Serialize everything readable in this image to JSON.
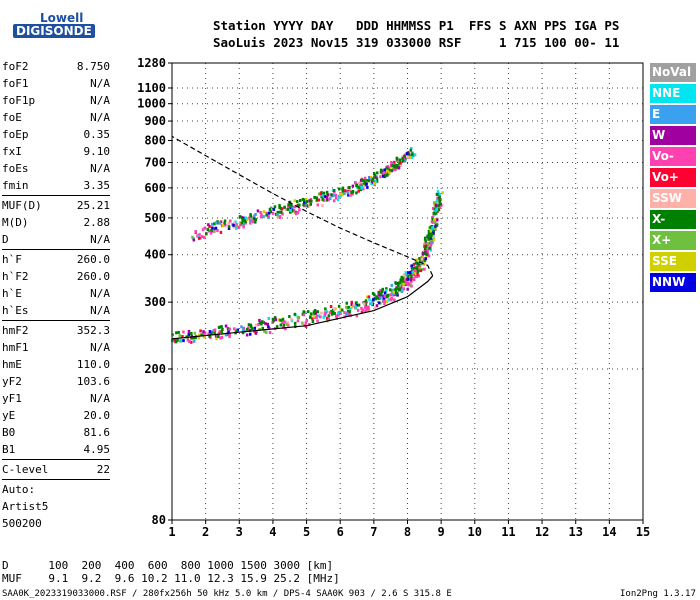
{
  "logo": {
    "line1": "Lowell",
    "line2": "DIGISONDE"
  },
  "header": {
    "line1": "Station YYYY DAY   DDD HHMMSS P1  FFS S AXN PPS IGA PS",
    "line2": "SaoLuis 2023 Nov15 319 033000 RSF     1 715 100 00- 11"
  },
  "params": [
    {
      "label": "foF2",
      "value": "8.750"
    },
    {
      "label": "foF1",
      "value": "N/A"
    },
    {
      "label": "foF1p",
      "value": "N/A"
    },
    {
      "label": "foE",
      "value": "N/A"
    },
    {
      "label": "foEp",
      "value": "0.35"
    },
    {
      "label": "fxI",
      "value": "9.10"
    },
    {
      "label": "foEs",
      "value": "N/A"
    },
    {
      "label": "fmin",
      "value": "3.35"
    },
    {
      "sep": true
    },
    {
      "label": "MUF(D)",
      "value": "25.21"
    },
    {
      "label": "M(D)",
      "value": "2.88"
    },
    {
      "label": "D",
      "value": "N/A"
    },
    {
      "sep": true
    },
    {
      "label": "h`F",
      "value": "260.0"
    },
    {
      "label": "h`F2",
      "value": "260.0"
    },
    {
      "label": "h`E",
      "value": "N/A"
    },
    {
      "label": "h`Es",
      "value": "N/A"
    },
    {
      "sep": true
    },
    {
      "label": "hmF2",
      "value": "352.3"
    },
    {
      "label": "hmF1",
      "value": "N/A"
    },
    {
      "label": "hmE",
      "value": "110.0"
    },
    {
      "label": "yF2",
      "value": "103.6"
    },
    {
      "label": "yF1",
      "value": "N/A"
    },
    {
      "label": "yE",
      "value": "20.0"
    },
    {
      "label": "B0",
      "value": "81.6"
    },
    {
      "label": "B1",
      "value": "4.95"
    },
    {
      "sep": true
    },
    {
      "label": "C-level",
      "value": "22"
    },
    {
      "sep": true
    },
    {
      "text": "Auto:"
    },
    {
      "text": "Artist5"
    },
    {
      "text": "500200"
    }
  ],
  "legend": [
    {
      "label": "NoVal",
      "color": "#a0a0a0"
    },
    {
      "label": "NNE",
      "color": "#00e6f0"
    },
    {
      "label": "E",
      "color": "#3aa0f0"
    },
    {
      "label": "W",
      "color": "#a000a0"
    },
    {
      "label": "Vo-",
      "color": "#ff40b0"
    },
    {
      "label": "Vo+",
      "color": "#ff0030"
    },
    {
      "label": "SSW",
      "color": "#ffb0a8"
    },
    {
      "label": "X-",
      "color": "#008000"
    },
    {
      "label": "X+",
      "color": "#70c040"
    },
    {
      "label": "SSE",
      "color": "#d0d000"
    },
    {
      "label": "NNW",
      "color": "#0000e0"
    }
  ],
  "chart_data": {
    "type": "scatter",
    "xlabel": "",
    "ylabel": "",
    "xlim": [
      1,
      15
    ],
    "ylim": [
      80,
      1280
    ],
    "y_scale": "log",
    "x_ticks": [
      1,
      2,
      3,
      4,
      5,
      6,
      7,
      8,
      9,
      10,
      11,
      12,
      13,
      14,
      15
    ],
    "y_ticks": [
      80,
      200,
      300,
      400,
      500,
      600,
      700,
      800,
      900,
      1000,
      1100,
      1280
    ],
    "grid": true,
    "series": [
      {
        "name": "Vo-",
        "kind": "trace",
        "points": [
          [
            1.0,
            240
          ],
          [
            3.0,
            252
          ],
          [
            5.0,
            270
          ],
          [
            6.5,
            288
          ],
          [
            7.5,
            315
          ],
          [
            8.0,
            340
          ],
          [
            8.4,
            380
          ],
          [
            8.7,
            450
          ],
          [
            8.9,
            580
          ]
        ]
      },
      {
        "name": "X-",
        "kind": "trace",
        "points": [
          [
            1.0,
            245
          ],
          [
            3.0,
            258
          ],
          [
            5.0,
            278
          ],
          [
            6.5,
            298
          ],
          [
            7.5,
            325
          ],
          [
            8.0,
            355
          ],
          [
            8.4,
            395
          ],
          [
            8.7,
            470
          ],
          [
            8.95,
            590
          ]
        ]
      },
      {
        "name": "Vo-",
        "kind": "trace",
        "points": [
          [
            1.5,
            450
          ],
          [
            3.0,
            490
          ],
          [
            4.5,
            530
          ],
          [
            6.0,
            580
          ],
          [
            7.0,
            640
          ],
          [
            8.0,
            730
          ]
        ]
      },
      {
        "name": "X-",
        "kind": "trace",
        "points": [
          [
            2.0,
            470
          ],
          [
            3.5,
            510
          ],
          [
            5.0,
            555
          ],
          [
            6.5,
            610
          ],
          [
            7.5,
            680
          ],
          [
            8.2,
            760
          ]
        ]
      }
    ],
    "model_profile": [
      [
        1.0,
        240
      ],
      [
        3.0,
        250
      ],
      [
        5.0,
        260
      ],
      [
        7.0,
        285
      ],
      [
        8.0,
        310
      ],
      [
        8.6,
        340
      ],
      [
        8.75,
        352
      ],
      [
        8.6,
        375
      ],
      [
        8.0,
        395
      ],
      [
        7.0,
        430
      ],
      [
        6.0,
        470
      ],
      [
        5.0,
        520
      ],
      [
        4.0,
        580
      ],
      [
        3.0,
        650
      ],
      [
        2.0,
        730
      ],
      [
        1.0,
        820
      ]
    ],
    "bottom_table": {
      "D_row": "D      100  200  400  600  800 1000 1500 3000 [km]",
      "MUF_row": "MUF    9.1  9.2  9.6 10.2 11.0 12.3 15.9 25.2 [MHz]"
    }
  },
  "footer": {
    "left": "SAA0K_2023319033000.RSF / 280fx256h 50 kHz 5.0 km / DPS-4 SAA0K 903 / 2.6 S 315.8 E",
    "right": "Ion2Png 1.3.17"
  }
}
